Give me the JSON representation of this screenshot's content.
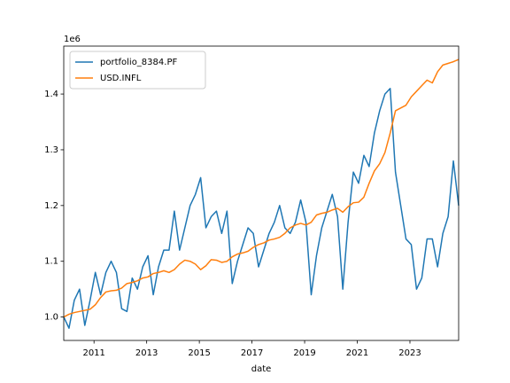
{
  "chart_data": {
    "type": "line",
    "offset_label": "1e6",
    "xlabel": "date",
    "x": [
      2009.85,
      2010.05,
      2010.25,
      2010.45,
      2010.65,
      2010.85,
      2011.05,
      2011.25,
      2011.45,
      2011.65,
      2011.85,
      2012.05,
      2012.25,
      2012.45,
      2012.65,
      2012.85,
      2013.05,
      2013.25,
      2013.45,
      2013.65,
      2013.85,
      2014.05,
      2014.25,
      2014.45,
      2014.65,
      2014.85,
      2015.05,
      2015.25,
      2015.45,
      2015.65,
      2015.85,
      2016.05,
      2016.25,
      2016.45,
      2016.65,
      2016.85,
      2017.05,
      2017.25,
      2017.45,
      2017.65,
      2017.85,
      2018.05,
      2018.25,
      2018.45,
      2018.65,
      2018.85,
      2019.05,
      2019.25,
      2019.45,
      2019.65,
      2019.85,
      2020.05,
      2020.25,
      2020.45,
      2020.65,
      2020.85,
      2021.05,
      2021.25,
      2021.45,
      2021.65,
      2021.85,
      2022.05,
      2022.25,
      2022.45,
      2022.65,
      2022.85,
      2023.05,
      2023.25,
      2023.45,
      2023.65,
      2023.85,
      2024.05,
      2024.25,
      2024.45,
      2024.65,
      2024.85
    ],
    "series": [
      {
        "name": "portfolio_8384.PF",
        "color": "#1f77b4",
        "values": [
          1.0,
          0.98,
          1.03,
          1.05,
          0.985,
          1.03,
          1.08,
          1.04,
          1.08,
          1.1,
          1.08,
          1.015,
          1.01,
          1.07,
          1.05,
          1.09,
          1.11,
          1.04,
          1.09,
          1.12,
          1.12,
          1.19,
          1.12,
          1.16,
          1.2,
          1.22,
          1.25,
          1.16,
          1.18,
          1.19,
          1.15,
          1.19,
          1.06,
          1.1,
          1.13,
          1.16,
          1.15,
          1.09,
          1.12,
          1.15,
          1.17,
          1.2,
          1.16,
          1.15,
          1.17,
          1.21,
          1.17,
          1.04,
          1.11,
          1.16,
          1.19,
          1.22,
          1.18,
          1.05,
          1.17,
          1.26,
          1.24,
          1.29,
          1.27,
          1.33,
          1.37,
          1.4,
          1.41,
          1.26,
          1.2,
          1.14,
          1.13,
          1.05,
          1.07,
          1.14,
          1.14,
          1.09,
          1.15,
          1.18,
          1.28,
          1.2
        ]
      },
      {
        "name": "USD.INFL",
        "color": "#ff7f0e",
        "values": [
          1.0,
          1.005,
          1.008,
          1.01,
          1.012,
          1.014,
          1.022,
          1.035,
          1.045,
          1.047,
          1.048,
          1.052,
          1.06,
          1.062,
          1.065,
          1.07,
          1.072,
          1.078,
          1.08,
          1.083,
          1.08,
          1.085,
          1.095,
          1.102,
          1.1,
          1.095,
          1.085,
          1.092,
          1.103,
          1.102,
          1.098,
          1.1,
          1.108,
          1.113,
          1.115,
          1.118,
          1.125,
          1.13,
          1.133,
          1.138,
          1.14,
          1.143,
          1.15,
          1.16,
          1.165,
          1.168,
          1.165,
          1.17,
          1.183,
          1.186,
          1.188,
          1.192,
          1.195,
          1.188,
          1.198,
          1.205,
          1.206,
          1.215,
          1.24,
          1.262,
          1.275,
          1.295,
          1.33,
          1.37,
          1.375,
          1.38,
          1.395,
          1.405,
          1.415,
          1.425,
          1.42,
          1.44,
          1.452,
          1.455,
          1.458,
          1.462
        ]
      }
    ],
    "xlim": [
      2009.85,
      2024.85
    ],
    "xticks": [
      2011,
      2013,
      2015,
      2017,
      2019,
      2021,
      2023
    ],
    "ylim": [
      0.958,
      1.486
    ],
    "yticks": [
      {
        "value": 1.0,
        "label": "1.0"
      },
      {
        "value": 1.1,
        "label": "1.1"
      },
      {
        "value": 1.2,
        "label": "1.2"
      },
      {
        "value": 1.3,
        "label": "1.3"
      },
      {
        "value": 1.4,
        "label": "1.4"
      }
    ],
    "legend": "upper left",
    "grid": false
  }
}
